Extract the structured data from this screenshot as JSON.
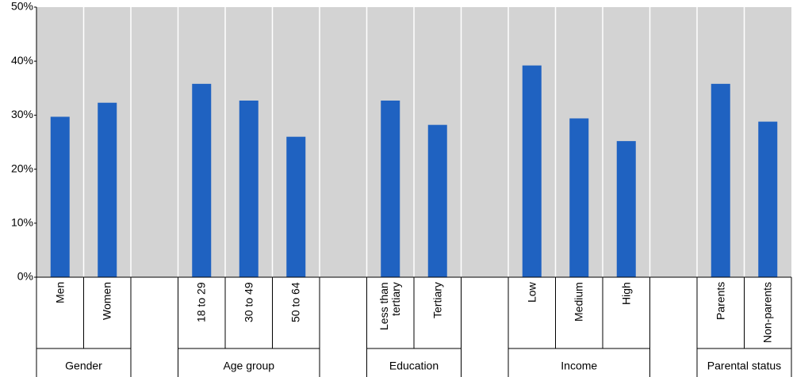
{
  "chart_data": {
    "type": "bar",
    "categories": [
      "Men",
      "Women",
      null,
      "18 to 29",
      "30 to 49",
      "50 to 64",
      null,
      "Less than tertiary",
      "Tertiary",
      null,
      "Low",
      "Medium",
      "High",
      null,
      "Parents",
      "Non-parents"
    ],
    "values": [
      29.7,
      32.3,
      null,
      35.8,
      32.7,
      26.0,
      null,
      32.7,
      28.2,
      null,
      39.2,
      29.4,
      25.2,
      null,
      35.8,
      28.8
    ],
    "groups": [
      {
        "name": "Gender",
        "start": 0,
        "end": 1
      },
      {
        "name": "Age group",
        "start": 3,
        "end": 5
      },
      {
        "name": "Education",
        "start": 7,
        "end": 8
      },
      {
        "name": "Income",
        "start": 10,
        "end": 12
      },
      {
        "name": "Parental status",
        "start": 14,
        "end": 15
      }
    ],
    "color": "#1f62c1",
    "ylim": [
      0,
      50
    ],
    "yticks": [
      {
        "value": 0,
        "label": "0%"
      },
      {
        "value": 10,
        "label": "10%"
      },
      {
        "value": 20,
        "label": "20%"
      },
      {
        "value": 30,
        "label": "30%"
      },
      {
        "value": 40,
        "label": "40%"
      },
      {
        "value": 50,
        "label": "50%"
      }
    ],
    "grid": true
  }
}
